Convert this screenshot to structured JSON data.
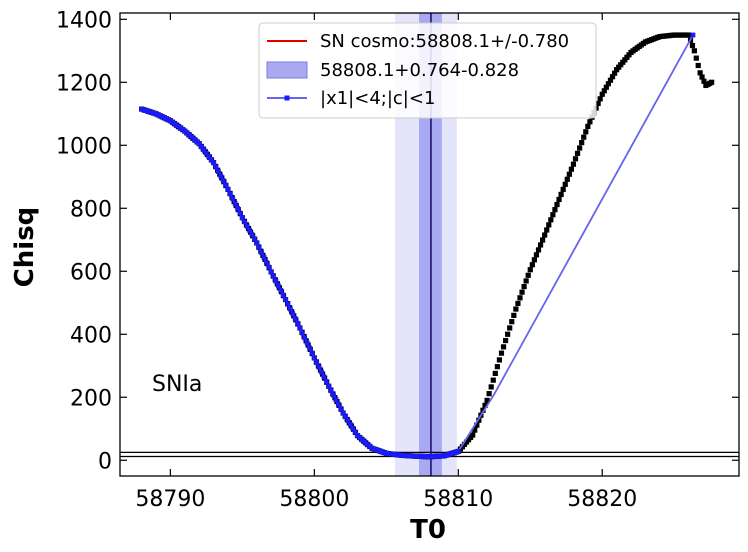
{
  "chart_data": {
    "type": "scatter",
    "title": "",
    "xlabel": "T0",
    "ylabel": "Chisq",
    "xlim": [
      58786.5,
      58829.5
    ],
    "ylim": [
      -50,
      1420
    ],
    "xticks": [
      58790,
      58800,
      58810,
      58820
    ],
    "yticks": [
      0,
      200,
      400,
      600,
      800,
      1000,
      1200,
      1400
    ],
    "grid": false,
    "legend_position": "top-center",
    "annotation": "SNIa",
    "colors": {
      "sn_line": "#e00000",
      "band_inner": "#a9a9f2",
      "band_outer": "#e4e4fb",
      "blue_series": "#1a1aff",
      "blue_line": "#6464ee",
      "black_series": "#000000",
      "hline": "#000000"
    },
    "vertical_line": {
      "name": "SN cosmo:58808.1+/-0.780",
      "x": 58808.1
    },
    "band_inner": {
      "name": "58808.1+0.764-0.828",
      "x0": 58807.27,
      "x1": 58808.86
    },
    "band_outer": {
      "x0": 58805.6,
      "x1": 58809.9
    },
    "horizontal_lines": [
      12,
      25
    ],
    "legend": [
      {
        "key": "sn",
        "label": "SN cosmo:58808.1+/-0.780"
      },
      {
        "key": "band",
        "label": "58808.1+0.764-0.828"
      },
      {
        "key": "cut",
        "label": "|x1|<4;|c|<1"
      }
    ],
    "series": [
      {
        "name": "",
        "color": "black",
        "x": [
          58788,
          58789,
          58790,
          58791,
          58792,
          58793,
          58794,
          58795,
          58796,
          58797,
          58798,
          58799,
          58800,
          58801,
          58802,
          58803,
          58804,
          58805,
          58806,
          58807,
          58808,
          58809,
          58810,
          58811,
          58812,
          58813,
          58814,
          58815,
          58816,
          58817,
          58818,
          58819,
          58820,
          58821,
          58822,
          58823,
          58824,
          58825,
          58826,
          58826.4,
          58826.8,
          58827.2,
          58827.6
        ],
        "y": [
          1115,
          1100,
          1078,
          1045,
          1005,
          945,
          860,
          770,
          690,
          598,
          510,
          420,
          325,
          235,
          150,
          78,
          38,
          22,
          16,
          13,
          11,
          14,
          28,
          80,
          190,
          340,
          480,
          605,
          715,
          828,
          940,
          1060,
          1162,
          1240,
          1295,
          1328,
          1345,
          1350,
          1350,
          1300,
          1230,
          1190,
          1200
        ]
      },
      {
        "name": "|x1|<4;|c|<1",
        "color": "blue",
        "x": [
          58788,
          58789,
          58790,
          58791,
          58792,
          58793,
          58794,
          58795,
          58796,
          58797,
          58798,
          58799,
          58800,
          58801,
          58802,
          58803,
          58804,
          58805,
          58806,
          58807,
          58808,
          58809,
          58810,
          58812.5,
          58826.3
        ],
        "y": [
          1115,
          1100,
          1078,
          1045,
          1005,
          945,
          860,
          770,
          690,
          598,
          510,
          420,
          325,
          235,
          150,
          78,
          38,
          22,
          16,
          13,
          11,
          14,
          28,
          210,
          1350
        ]
      }
    ]
  }
}
